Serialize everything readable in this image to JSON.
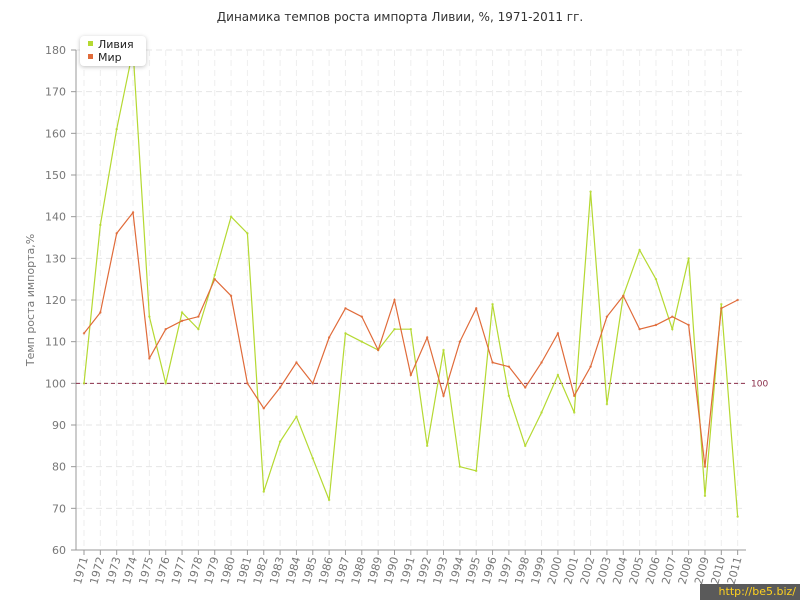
{
  "chart_data": {
    "type": "line",
    "title": "Динамика темпов роста импорта Ливии, %, 1971-2011 гг.",
    "ylabel": "Темп роста импорта,%",
    "xlabel": "",
    "ylim": [
      60,
      180
    ],
    "y_ticks": [
      "60",
      "70",
      "80",
      "90",
      "100",
      "110",
      "120",
      "130",
      "140",
      "150",
      "160",
      "170",
      "180"
    ],
    "categories": [
      "1971",
      "1972",
      "1973",
      "1974",
      "1975",
      "1976",
      "1977",
      "1978",
      "1979",
      "1980",
      "1981",
      "1982",
      "1983",
      "1984",
      "1985",
      "1986",
      "1987",
      "1988",
      "1989",
      "1990",
      "1991",
      "1992",
      "1993",
      "1994",
      "1995",
      "1996",
      "1997",
      "1998",
      "1999",
      "2000",
      "2001",
      "2002",
      "2003",
      "2004",
      "2005",
      "2006",
      "2007",
      "2008",
      "2009",
      "2010",
      "2011"
    ],
    "series": [
      {
        "name": "Ливия",
        "color": "#b5d932",
        "values": [
          100,
          138,
          161,
          180,
          116,
          100,
          117,
          113,
          126,
          140,
          136,
          74,
          86,
          92,
          82,
          72,
          112,
          110,
          108,
          113,
          113,
          85,
          108,
          80,
          79,
          119,
          97,
          85,
          93,
          102,
          93,
          146,
          95,
          121,
          132,
          125,
          113,
          130,
          73,
          119,
          68
        ]
      },
      {
        "name": "Мир",
        "color": "#e06b3a",
        "values": [
          112,
          117,
          136,
          141,
          106,
          113,
          115,
          116,
          125,
          121,
          100,
          94,
          99,
          105,
          100,
          111,
          118,
          116,
          108,
          120,
          102,
          111,
          97,
          110,
          118,
          105,
          104,
          99,
          105,
          112,
          97,
          104,
          116,
          121,
          113,
          114,
          116,
          114,
          80,
          118,
          120
        ]
      }
    ],
    "reference_line": {
      "value": 100,
      "label": "100",
      "color": "#8b2e4a"
    },
    "grid": true,
    "legend_position": "top-left"
  },
  "watermark": "http://be5.biz/"
}
